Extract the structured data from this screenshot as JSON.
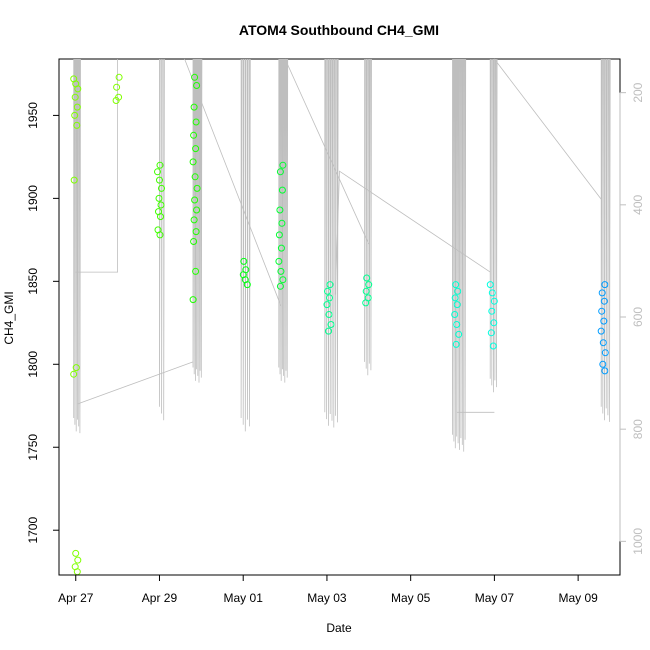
{
  "chart_data": {
    "type": "scatter",
    "title": "ATOM4 Southbound CH4_GMI",
    "xlabel": "Date",
    "ylabel": "CH4_GMI",
    "x_ticks": [
      {
        "value": 0,
        "label": "Apr 27"
      },
      {
        "value": 2,
        "label": "Apr 29"
      },
      {
        "value": 4,
        "label": "May 01"
      },
      {
        "value": 6,
        "label": "May 03"
      },
      {
        "value": 8,
        "label": "May 05"
      },
      {
        "value": 10,
        "label": "May 07"
      },
      {
        "value": 12,
        "label": "May 09"
      }
    ],
    "xlim": [
      -0.4,
      13.0
    ],
    "ylim": [
      1673,
      1984
    ],
    "y_ticks": [
      1700,
      1750,
      1800,
      1850,
      1900,
      1950
    ],
    "y2lim": [
      1060,
      140
    ],
    "y2_ticks": [
      200,
      400,
      600,
      800,
      1000
    ],
    "grid": false,
    "colors": {
      "altitude_line": "#bebebe",
      "axis": "#000000",
      "secondary_axis": "#bebebe"
    },
    "series": [
      {
        "name": "",
        "color": "#80ff00",
        "x": 0.0,
        "y": [
          1972,
          1969,
          1966,
          1961,
          1955,
          1950,
          1944,
          1911,
          1798,
          1794,
          1686,
          1682,
          1678,
          1675
        ]
      },
      {
        "name": "",
        "color": "#80ff00",
        "x": 1.0,
        "y": [
          1973,
          1967,
          1961,
          1959
        ]
      },
      {
        "name": "",
        "color": "#40ff00",
        "x": 2.0,
        "y": [
          1920,
          1916,
          1911,
          1906,
          1900,
          1896,
          1892,
          1889,
          1881,
          1878
        ]
      },
      {
        "name": "",
        "color": "#20ff00",
        "x": 2.85,
        "y": [
          1973,
          1968,
          1955,
          1946,
          1938,
          1930,
          1922,
          1913,
          1906,
          1899,
          1893,
          1887,
          1880,
          1874,
          1856,
          1839
        ]
      },
      {
        "name": "",
        "color": "#00ff10",
        "x": 4.05,
        "y": [
          1862,
          1857,
          1854,
          1851,
          1848
        ]
      },
      {
        "name": "",
        "color": "#00ff30",
        "x": 4.9,
        "y": [
          1920,
          1916,
          1905,
          1893,
          1885,
          1878,
          1870,
          1862,
          1856,
          1851,
          1847
        ]
      },
      {
        "name": "",
        "color": "#00ff90",
        "x": 6.05,
        "y": [
          1848,
          1844,
          1840,
          1836,
          1830,
          1824,
          1820
        ]
      },
      {
        "name": "",
        "color": "#00ff90",
        "x": 6.95,
        "y": [
          1852,
          1848,
          1844,
          1840,
          1837
        ]
      },
      {
        "name": "",
        "color": "#00ffd0",
        "x": 9.1,
        "y": [
          1848,
          1844,
          1840,
          1836,
          1830,
          1824,
          1818,
          1812
        ]
      },
      {
        "name": "",
        "color": "#00ffe0",
        "x": 9.95,
        "y": [
          1848,
          1843,
          1838,
          1832,
          1825,
          1819,
          1811
        ]
      },
      {
        "name": "",
        "color": "#009cff",
        "x": 12.6,
        "y": [
          1848,
          1843,
          1838,
          1832,
          1826,
          1820,
          1813,
          1807,
          1800,
          1796
        ]
      }
    ]
  }
}
